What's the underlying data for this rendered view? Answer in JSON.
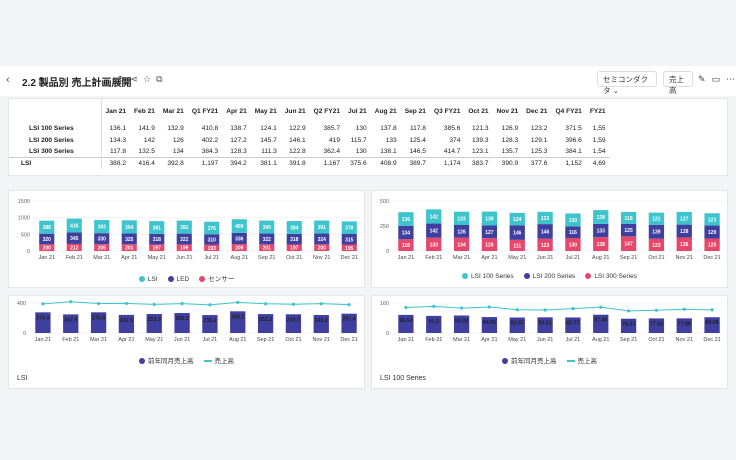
{
  "header": {
    "title": "2.2 製品別 売上計画展開",
    "filter1": "セミコンダクタ",
    "filter2": "売上高"
  },
  "table": {
    "columns": [
      "Jan 21",
      "Feb 21",
      "Mar 21",
      "Q1 FY21",
      "Apr 21",
      "May 21",
      "Jun 21",
      "Q2 FY21",
      "Jul 21",
      "Aug 21",
      "Sep 21",
      "Q3 FY21",
      "Oct 21",
      "Nov 21",
      "Dec 21",
      "Q4 FY21",
      "FY21"
    ],
    "rows": [
      {
        "label": "LSI 100 Series",
        "values": [
          "136.1",
          "141.9",
          "132.9",
          "410.8",
          "138.7",
          "124.1",
          "122.9",
          "385.7",
          "130",
          "137.8",
          "117.8",
          "385.6",
          "121.3",
          "126.9",
          "123.2",
          "371.5",
          "1,55"
        ]
      },
      {
        "label": "LSI 200 Series",
        "values": [
          "134.3",
          "142",
          "126",
          "402.2",
          "127.2",
          "145.7",
          "146.1",
          "419",
          "115.7",
          "133",
          "125.4",
          "374",
          "139.3",
          "128.3",
          "129.1",
          "396.6",
          "1,59"
        ]
      },
      {
        "label": "LSI 300 Series",
        "values": [
          "117.8",
          "132.5",
          "134",
          "384.3",
          "128.3",
          "111.3",
          "122.8",
          "362.4",
          "130",
          "138.1",
          "146.5",
          "414.7",
          "123.1",
          "135.7",
          "125.3",
          "384.1",
          "1,54"
        ]
      },
      {
        "label": "LSI",
        "values": [
          "388.2",
          "416.4",
          "392.8",
          "1,197",
          "394.2",
          "381.1",
          "391.8",
          "1,167",
          "375.6",
          "408.9",
          "389.7",
          "1,174",
          "383.7",
          "390.9",
          "377.6",
          "1,152",
          "4,69"
        ]
      }
    ]
  },
  "months": [
    "Jan 21",
    "Feb 21",
    "Mar 21",
    "Apr 21",
    "May 21",
    "Jun 21",
    "Jul 21",
    "Aug 21",
    "Sep 21",
    "Oct 21",
    "Nov 21",
    "Dec 21"
  ],
  "chart_data": [
    {
      "type": "bar",
      "stacked": true,
      "title": "",
      "categories": [
        "Jan 21",
        "Feb 21",
        "Mar 21",
        "Apr 21",
        "May 21",
        "Jun 21",
        "Jul 21",
        "Aug 21",
        "Sep 21",
        "Oct 21",
        "Nov 21",
        "Dec 21"
      ],
      "ylim": [
        0,
        1500
      ],
      "yticks": [
        "1500",
        "1000",
        "500",
        "0"
      ],
      "series": [
        {
          "name": "LSI",
          "color": "#3ec4cc",
          "values": [
            388.2,
            416.4,
            392.8,
            394.2,
            381.1,
            391.8,
            375.6,
            408.9,
            389.7,
            383.7,
            390.9,
            377.6
          ]
        },
        {
          "name": "LED",
          "color": "#3f3fa0",
          "values": [
            320,
            345,
            330,
            325,
            318,
            322,
            310,
            336,
            322,
            318,
            324,
            315
          ]
        },
        {
          "name": "センサー",
          "color": "#e5486a",
          "values": [
            200,
            212,
            205,
            201,
            197,
            199,
            193,
            209,
            201,
            197,
            200,
            195
          ]
        }
      ]
    },
    {
      "type": "bar",
      "stacked": true,
      "title": "",
      "categories": [
        "Jan 21",
        "Feb 21",
        "Mar 21",
        "Apr 21",
        "May 21",
        "Jun 21",
        "Jul 21",
        "Aug 21",
        "Sep 21",
        "Oct 21",
        "Nov 21",
        "Dec 21"
      ],
      "ylim": [
        0,
        500
      ],
      "yticks": [
        "500",
        "250",
        "0"
      ],
      "series": [
        {
          "name": "LSI 100 Series",
          "color": "#3ec4cc",
          "values": [
            136.1,
            141.9,
            132.9,
            138.7,
            124.1,
            122.9,
            130,
            137.8,
            117.8,
            121.3,
            126.9,
            123.2
          ]
        },
        {
          "name": "LSI 200 Series",
          "color": "#3f3fa0",
          "values": [
            134.3,
            142,
            126,
            127.2,
            145.7,
            146.1,
            115.7,
            133,
            125.4,
            139.3,
            128.3,
            129.1
          ]
        },
        {
          "name": "LSI 300 Series",
          "color": "#e5486a",
          "values": [
            117.8,
            132.5,
            134,
            128.3,
            111.3,
            122.8,
            130,
            138.1,
            146.5,
            123.1,
            135.7,
            125.3
          ]
        }
      ]
    },
    {
      "type": "bar",
      "title": "LSI",
      "categories": [
        "Jan 21",
        "Feb 21",
        "Mar 21",
        "Apr 21",
        "May 21",
        "Jun 21",
        "Jul 21",
        "Aug 21",
        "Sep 21",
        "Oct 21",
        "Nov 21",
        "Dec 21"
      ],
      "ylim": [
        0,
        400
      ],
      "yticks": [
        "400",
        "0"
      ],
      "series": [
        {
          "name": "前年同月売上高",
          "color": "#3f3fa0",
          "kind": "bar",
          "values": [
            275.4,
            247.9,
            275.8,
            241.5,
            253.3,
            266.2,
            239.2,
            289.2,
            252.2,
            249.5,
            240.2,
            257.6
          ]
        },
        {
          "name": "売上高",
          "color": "#3ec4cc",
          "kind": "line",
          "values": [
            388.2,
            416.4,
            392.8,
            394.2,
            381.1,
            391.8,
            375.6,
            408.9,
            389.7,
            383.7,
            390.9,
            377.6
          ]
        }
      ]
    },
    {
      "type": "bar",
      "title": "LSI 100 Series",
      "categories": [
        "Jan 21",
        "Feb 21",
        "Mar 21",
        "Apr 21",
        "May 21",
        "Jun 21",
        "Jul 21",
        "Aug 21",
        "Sep 21",
        "Oct 21",
        "Nov 21",
        "Dec 21"
      ],
      "ylim": [
        0,
        160
      ],
      "yticks": [
        "160",
        "0"
      ],
      "series": [
        {
          "name": "前年同月売上高",
          "color": "#3f3fa0",
          "kind": "bar",
          "values": [
            96.54,
            91.3,
            93.28,
            84.95,
            82.57,
            83.51,
            82.77,
            97.48,
            76.23,
            77.92,
            77.99,
            84.06
          ]
        },
        {
          "name": "売上高",
          "color": "#3ec4cc",
          "kind": "line",
          "values": [
            136.1,
            141.9,
            132.9,
            138.7,
            124.1,
            122.9,
            130,
            137.8,
            117.8,
            121.3,
            126.9,
            123.2
          ]
        }
      ]
    }
  ]
}
